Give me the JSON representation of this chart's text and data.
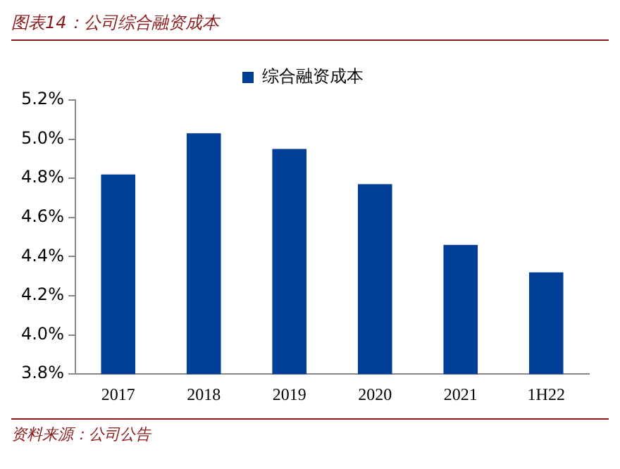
{
  "chart_data": {
    "type": "bar",
    "title": "图表14：公司综合融资成本",
    "categories": [
      "2017",
      "2018",
      "2019",
      "2020",
      "2021",
      "1H22"
    ],
    "series": [
      {
        "name": "综合融资成本",
        "color": "#003f97",
        "values": [
          4.82,
          5.03,
          4.95,
          4.77,
          4.46,
          4.32
        ]
      }
    ],
    "ylim": [
      3.8,
      5.2
    ],
    "yticks": [
      {
        "value": 3.8,
        "label": "3.8%"
      },
      {
        "value": 4.0,
        "label": "4.0%"
      },
      {
        "value": 4.2,
        "label": "4.2%"
      },
      {
        "value": 4.4,
        "label": "4.4%"
      },
      {
        "value": 4.6,
        "label": "4.6%"
      },
      {
        "value": 4.8,
        "label": "4.8%"
      },
      {
        "value": 5.0,
        "label": "5.0%"
      },
      {
        "value": 5.2,
        "label": "5.2%"
      }
    ],
    "grid": false,
    "legend": "top",
    "annotations": [
      "资料来源：公司公告"
    ]
  }
}
